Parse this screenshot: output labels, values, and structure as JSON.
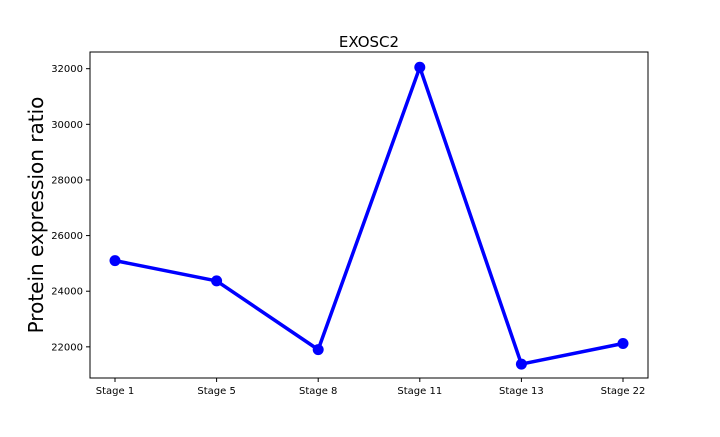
{
  "chart_data": {
    "type": "line",
    "title": "EXOSC2",
    "xlabel": "",
    "ylabel": "Protein expression ratio",
    "categories": [
      "Stage 1",
      "Stage 5",
      "Stage 8",
      "Stage 11",
      "Stage 13",
      "Stage 22"
    ],
    "series": [
      {
        "values": [
          25100,
          24370,
          21900,
          32050,
          21380,
          22120
        ]
      }
    ],
    "yticks": [
      "22000",
      "24000",
      "26000",
      "28000",
      "30000",
      "32000"
    ],
    "ylim": [
      20880,
      32600
    ],
    "grid": false,
    "legend": "none",
    "line_color": "#0000ff"
  }
}
